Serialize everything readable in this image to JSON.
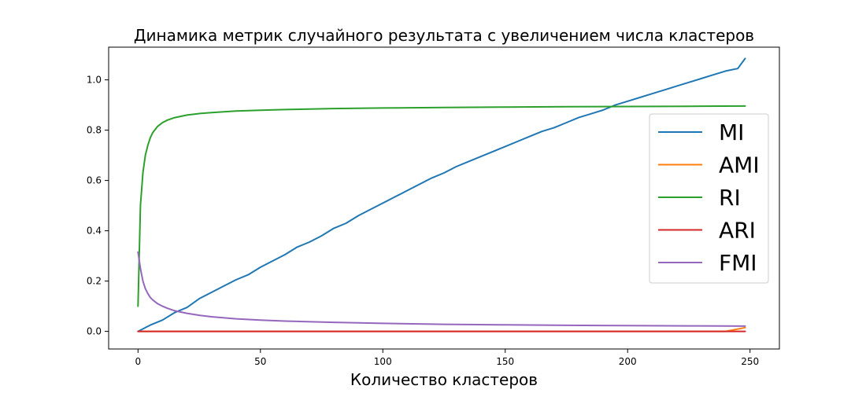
{
  "chart_data": {
    "type": "line",
    "title": "Динамика метрик случайного результата с увеличением числа кластеров",
    "xlabel": "Количество кластеров",
    "ylabel": "",
    "xlim": [
      -12,
      262
    ],
    "ylim": [
      -0.07,
      1.13
    ],
    "xticks": [
      0,
      50,
      100,
      150,
      200,
      250
    ],
    "yticks": [
      0.0,
      0.2,
      0.4,
      0.6,
      0.8,
      1.0
    ],
    "xtick_labels": [
      "0",
      "50",
      "100",
      "150",
      "200",
      "250"
    ],
    "ytick_labels": [
      "0.0",
      "0.2",
      "0.4",
      "0.6",
      "0.8",
      "1.0"
    ],
    "grid": false,
    "legend_position": "right",
    "series": [
      {
        "name": "MI",
        "color": "#1f77b4",
        "x": [
          0,
          5,
          10,
          15,
          20,
          25,
          30,
          35,
          40,
          45,
          50,
          55,
          60,
          65,
          70,
          75,
          80,
          85,
          90,
          95,
          100,
          105,
          110,
          115,
          120,
          125,
          130,
          135,
          140,
          145,
          150,
          155,
          160,
          165,
          170,
          175,
          180,
          185,
          190,
          195,
          200,
          205,
          210,
          215,
          220,
          225,
          230,
          235,
          240,
          245,
          248
        ],
        "y": [
          0.0,
          0.025,
          0.045,
          0.075,
          0.095,
          0.13,
          0.155,
          0.18,
          0.205,
          0.225,
          0.255,
          0.28,
          0.305,
          0.335,
          0.355,
          0.38,
          0.41,
          0.43,
          0.46,
          0.485,
          0.51,
          0.535,
          0.56,
          0.585,
          0.61,
          0.63,
          0.655,
          0.675,
          0.695,
          0.715,
          0.735,
          0.755,
          0.775,
          0.795,
          0.81,
          0.83,
          0.85,
          0.865,
          0.88,
          0.9,
          0.915,
          0.93,
          0.945,
          0.96,
          0.975,
          0.99,
          1.005,
          1.02,
          1.035,
          1.045,
          1.085
        ]
      },
      {
        "name": "AMI",
        "color": "#ff7f0e",
        "x": [
          0,
          10,
          20,
          30,
          40,
          50,
          60,
          70,
          80,
          90,
          100,
          110,
          120,
          130,
          140,
          150,
          160,
          170,
          180,
          190,
          200,
          210,
          220,
          230,
          240,
          248
        ],
        "y": [
          0.0,
          0.0,
          0.0,
          0.0,
          0.0,
          0.0,
          0.0,
          0.0,
          0.0,
          0.0,
          0.0,
          0.0,
          0.0,
          0.0,
          0.0,
          0.0,
          0.0,
          0.0,
          0.0,
          0.0,
          0.0,
          0.0,
          0.0,
          0.0,
          0.0,
          0.015
        ]
      },
      {
        "name": "RI",
        "color": "#2ca02c",
        "x": [
          0,
          1,
          2,
          3,
          4,
          5,
          6,
          8,
          10,
          12,
          15,
          20,
          25,
          30,
          40,
          50,
          60,
          80,
          100,
          125,
          150,
          175,
          200,
          225,
          248
        ],
        "y": [
          0.1,
          0.5,
          0.63,
          0.7,
          0.74,
          0.77,
          0.79,
          0.815,
          0.83,
          0.84,
          0.85,
          0.86,
          0.866,
          0.87,
          0.876,
          0.879,
          0.882,
          0.886,
          0.888,
          0.89,
          0.892,
          0.893,
          0.894,
          0.895,
          0.896
        ]
      },
      {
        "name": "ARI",
        "color": "#d62728",
        "x": [
          0,
          25,
          50,
          75,
          100,
          125,
          150,
          175,
          200,
          225,
          248
        ],
        "y": [
          0.0,
          0.0,
          0.0,
          0.0,
          0.0,
          0.0,
          0.0,
          0.0,
          0.0,
          0.0,
          0.0
        ]
      },
      {
        "name": "FMI",
        "color": "#9467bd",
        "x": [
          0,
          1,
          2,
          3,
          4,
          5,
          6,
          8,
          10,
          12,
          15,
          20,
          25,
          30,
          40,
          50,
          60,
          80,
          100,
          125,
          150,
          175,
          200,
          225,
          248
        ],
        "y": [
          0.315,
          0.25,
          0.2,
          0.17,
          0.15,
          0.135,
          0.125,
          0.11,
          0.1,
          0.092,
          0.082,
          0.072,
          0.064,
          0.058,
          0.05,
          0.045,
          0.041,
          0.036,
          0.032,
          0.028,
          0.026,
          0.024,
          0.023,
          0.022,
          0.021
        ]
      }
    ]
  }
}
